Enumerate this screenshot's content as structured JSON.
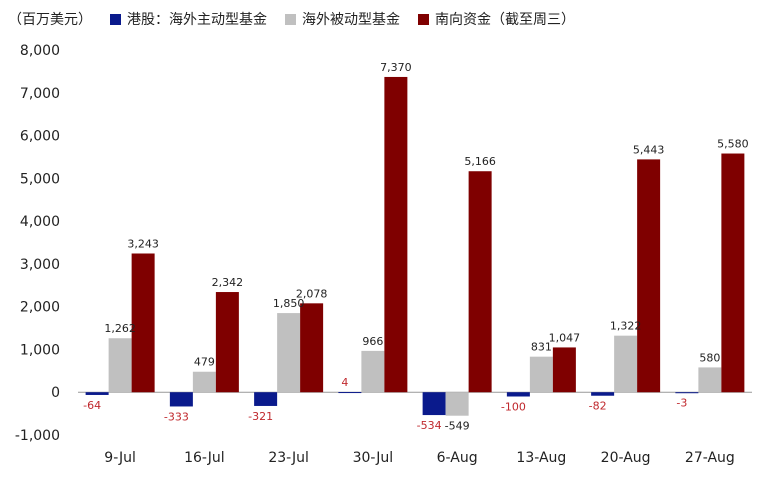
{
  "chart_data": {
    "type": "bar",
    "unit_label": "（百万美元）",
    "categories": [
      "9-Jul",
      "16-Jul",
      "23-Jul",
      "30-Jul",
      "6-Aug",
      "13-Aug",
      "20-Aug",
      "27-Aug"
    ],
    "series": [
      {
        "name": "港股：海外主动型基金",
        "color": "#0a1a8c",
        "values": [
          -64,
          -333,
          -321,
          4,
          -534,
          -100,
          -82,
          -3
        ],
        "labels": [
          "-64",
          "-333",
          "-321",
          "4",
          "-534",
          "-100",
          "-82",
          "-3"
        ],
        "label_color": "#c0282d"
      },
      {
        "name": "海外被动型基金",
        "color": "#c0c0c0",
        "values": [
          1262,
          479,
          1850,
          966,
          -549,
          831,
          1322,
          580
        ],
        "labels": [
          "1,262",
          "479",
          "1,850",
          "966",
          "-549",
          "831",
          "1,322",
          "580"
        ],
        "label_color": "#222222"
      },
      {
        "name": "南向资金（截至周三）",
        "color": "#7f0000",
        "values": [
          3243,
          2342,
          2078,
          7370,
          5166,
          1047,
          5443,
          5580
        ],
        "labels": [
          "3,243",
          "2,342",
          "2,078",
          "7,370",
          "5,166",
          "1,047",
          "5,443",
          "5,580"
        ],
        "label_color": "#222222"
      }
    ],
    "y_ticks": [
      "-1,000",
      "0",
      "1,000",
      "2,000",
      "3,000",
      "4,000",
      "5,000",
      "6,000",
      "7,000",
      "8,000"
    ],
    "ylim": [
      -1000,
      8000
    ],
    "grid": false,
    "legend_position": "top"
  }
}
